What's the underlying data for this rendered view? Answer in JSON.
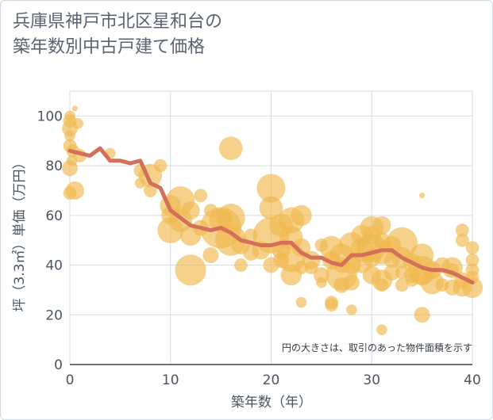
{
  "title_line1": "兵庫県神戸市北区星和台の",
  "title_line2": "築年数別中古戸建て価格",
  "chart_data": {
    "type": "scatter",
    "title": "兵庫県神戸市北区星和台の築年数別中古戸建て価格",
    "xlabel": "築年数（年）",
    "ylabel": "坪（3.3㎡）単価（万円）",
    "xlim": [
      0,
      40
    ],
    "ylim": [
      0,
      110
    ],
    "xticks": [
      0,
      10,
      20,
      30,
      40
    ],
    "yticks": [
      0,
      20,
      40,
      60,
      80,
      100
    ],
    "grid": true,
    "note": "円の大きさは、取引のあった物件面積を示す",
    "colors": {
      "bubble": "#f0b84f",
      "line": "#d4705a",
      "grid": "#d6dde3",
      "axis": "#4a5560"
    },
    "series": [
      {
        "type": "scatter",
        "points": [
          [
            0,
            100,
            3
          ],
          [
            0,
            98,
            4
          ],
          [
            0,
            95,
            5
          ],
          [
            0.5,
            103,
            1
          ],
          [
            0.8,
            97,
            3
          ],
          [
            0,
            92,
            3
          ],
          [
            0,
            88,
            4
          ],
          [
            0.3,
            86,
            4
          ],
          [
            1,
            84,
            4
          ],
          [
            0.2,
            82,
            3
          ],
          [
            0,
            79,
            5
          ],
          [
            0.5,
            70,
            6
          ],
          [
            0,
            69,
            4
          ],
          [
            4,
            85,
            3
          ],
          [
            7,
            78,
            4
          ],
          [
            8,
            76,
            8
          ],
          [
            9,
            80,
            4
          ],
          [
            7,
            73,
            3
          ],
          [
            8,
            70,
            4
          ],
          [
            10,
            64,
            7
          ],
          [
            10,
            60,
            6
          ],
          [
            10,
            54,
            9
          ],
          [
            11,
            66,
            10
          ],
          [
            11,
            58,
            8
          ],
          [
            12,
            62,
            6
          ],
          [
            12,
            52,
            7
          ],
          [
            12,
            38,
            11
          ],
          [
            13,
            68,
            4
          ],
          [
            13,
            55,
            5
          ],
          [
            14,
            44,
            5
          ],
          [
            14,
            62,
            4
          ],
          [
            15,
            55,
            15
          ],
          [
            15,
            58,
            8
          ],
          [
            16,
            50,
            11
          ],
          [
            16,
            59,
            10
          ],
          [
            16,
            87,
            8
          ],
          [
            17,
            48,
            6
          ],
          [
            17,
            40,
            4
          ],
          [
            18,
            52,
            4
          ],
          [
            18,
            45,
            5
          ],
          [
            19,
            46,
            6
          ],
          [
            20,
            71,
            10
          ],
          [
            20,
            63,
            8
          ],
          [
            20,
            52,
            13
          ],
          [
            20,
            40,
            5
          ],
          [
            21,
            56,
            8
          ],
          [
            21,
            46,
            6
          ],
          [
            21,
            42,
            5
          ],
          [
            22,
            58,
            9
          ],
          [
            22,
            51,
            8
          ],
          [
            22,
            43,
            10
          ],
          [
            22,
            36,
            7
          ],
          [
            23,
            60,
            7
          ],
          [
            23,
            47,
            6
          ],
          [
            23,
            39,
            4
          ],
          [
            23,
            25,
            3
          ],
          [
            24,
            42,
            6
          ],
          [
            24,
            39,
            4
          ],
          [
            25,
            36,
            5
          ],
          [
            25,
            33,
            3
          ],
          [
            25,
            48,
            4
          ],
          [
            26,
            47,
            8
          ],
          [
            26,
            42,
            6
          ],
          [
            26,
            25,
            4
          ],
          [
            26,
            24,
            4
          ],
          [
            27,
            44,
            8
          ],
          [
            27,
            40,
            5
          ],
          [
            27,
            36,
            11
          ],
          [
            27,
            32,
            5
          ],
          [
            28,
            48,
            9
          ],
          [
            28,
            40,
            6
          ],
          [
            28,
            33,
            5
          ],
          [
            28,
            22,
            3
          ],
          [
            29,
            52,
            7
          ],
          [
            29,
            46,
            8
          ],
          [
            29,
            41,
            7
          ],
          [
            30,
            55,
            8
          ],
          [
            30,
            52,
            6
          ],
          [
            30,
            47,
            10
          ],
          [
            30,
            43,
            6
          ],
          [
            30,
            36,
            6
          ],
          [
            31,
            56,
            6
          ],
          [
            31,
            50,
            5
          ],
          [
            31,
            45,
            8
          ],
          [
            31,
            34,
            7
          ],
          [
            31,
            32,
            4
          ],
          [
            31,
            14,
            3
          ],
          [
            32,
            48,
            6
          ],
          [
            32,
            42,
            5
          ],
          [
            32,
            37,
            5
          ],
          [
            33,
            49,
            11
          ],
          [
            33,
            43,
            7
          ],
          [
            33,
            37,
            4
          ],
          [
            33,
            32,
            4
          ],
          [
            34,
            41,
            6
          ],
          [
            34,
            36,
            5
          ],
          [
            34,
            34,
            4
          ],
          [
            35,
            68,
            1
          ],
          [
            35,
            44,
            8
          ],
          [
            35,
            38,
            10
          ],
          [
            35,
            36,
            7
          ],
          [
            35,
            20,
            5
          ],
          [
            36,
            38,
            6
          ],
          [
            36,
            33,
            8
          ],
          [
            37,
            40,
            5
          ],
          [
            37,
            32,
            4
          ],
          [
            38,
            39,
            7
          ],
          [
            38,
            38,
            4
          ],
          [
            38,
            31,
            5
          ],
          [
            39,
            54,
            4
          ],
          [
            39,
            50,
            4
          ],
          [
            39,
            34,
            5
          ],
          [
            39,
            31,
            6
          ],
          [
            40,
            47,
            4
          ],
          [
            40,
            42,
            4
          ],
          [
            40,
            38,
            4
          ],
          [
            40,
            35,
            4
          ],
          [
            40,
            31,
            7
          ]
        ]
      },
      {
        "type": "line",
        "name": "",
        "x": [
          0,
          1,
          2,
          3,
          4,
          5,
          6,
          7,
          8,
          9,
          10,
          11,
          12,
          13,
          14,
          15,
          16,
          17,
          18,
          19,
          20,
          21,
          22,
          23,
          24,
          25,
          26,
          27,
          28,
          29,
          30,
          31,
          32,
          33,
          34,
          35,
          36,
          37,
          38,
          39,
          40
        ],
        "y": [
          86,
          85,
          84,
          87,
          82,
          82,
          81,
          82,
          73,
          71,
          62,
          59,
          56,
          55,
          54,
          55,
          53,
          50,
          49,
          48,
          48,
          49,
          49,
          45,
          43,
          43,
          41,
          40,
          44,
          44,
          45,
          46,
          46,
          43,
          41,
          39,
          38,
          38,
          37,
          35,
          33
        ]
      }
    ]
  }
}
